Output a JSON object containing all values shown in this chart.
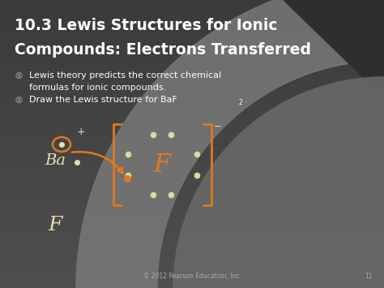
{
  "title_line1": "10.3 Lewis Structures for Ionic",
  "title_line2": "Compounds: Electrons Transferred",
  "bullet1_line1": "Lewis theory predicts the correct chemical",
  "bullet1_line2": "formulas for ionic compounds.",
  "bullet2_text": "Draw the Lewis structure for BaF",
  "bullet2_sub": "2",
  "copyright": "© 2012 Pearson Education, Inc.",
  "slide_number": "11",
  "bg_dark": "#3a3a3a",
  "bg_mid": "#484848",
  "bg_light_curve": "#888888",
  "title_color": "#ffffff",
  "bullet_color": "#ffffff",
  "bullet_symbol_color": "#cccccc",
  "orange_color": "#e07820",
  "cream_color": "#e8ddb0",
  "dot_color": "#e0d89a",
  "footer_color": "#aaaaaa",
  "figsize": [
    4.74,
    3.55
  ],
  "dpi": 100
}
